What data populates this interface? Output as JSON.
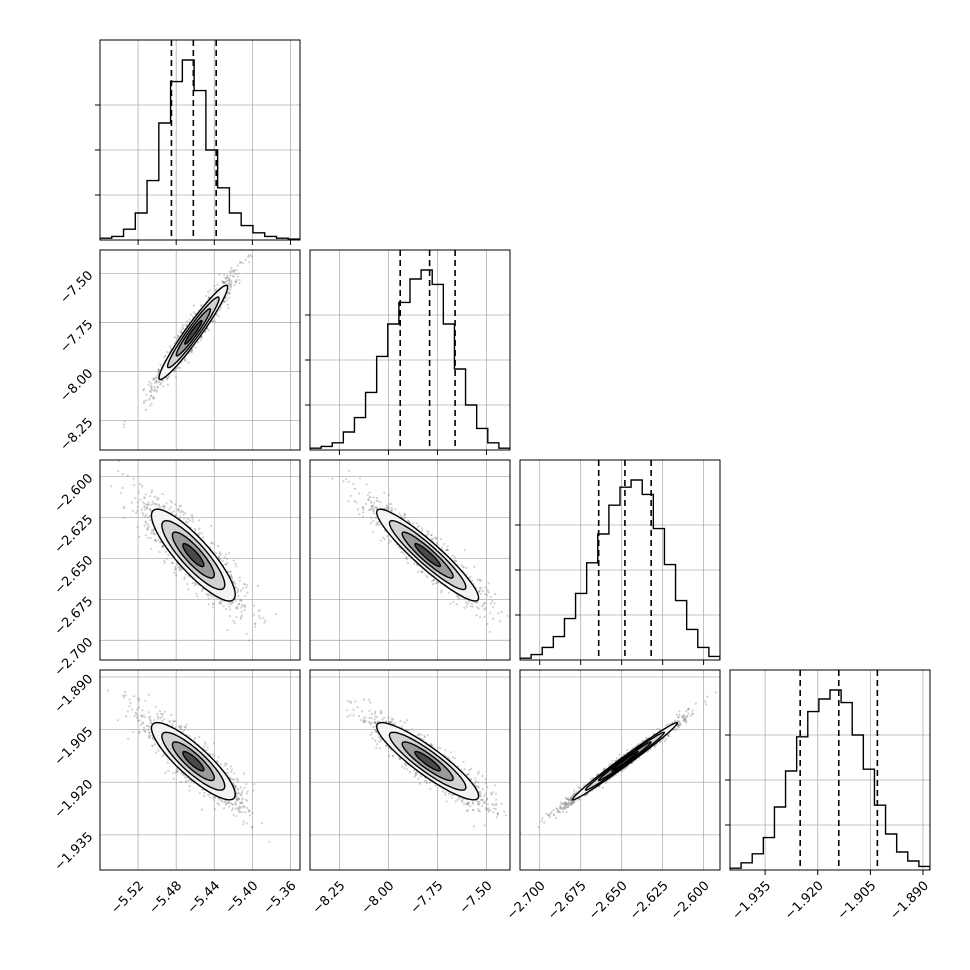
{
  "chart_data": {
    "type": "corner",
    "grid": true,
    "quantile_line_style": "dashed",
    "parameters": [
      {
        "range": [
          -5.56,
          -5.35
        ],
        "ticks": [
          -5.52,
          -5.48,
          -5.44,
          -5.4,
          -5.36
        ],
        "tick_labels": [
          "−5.52",
          "−5.48",
          "−5.44",
          "−5.40",
          "−5.36"
        ],
        "quantiles": [
          -5.485,
          -5.462,
          -5.438
        ],
        "hist_counts": [
          0.01,
          0.02,
          0.06,
          0.15,
          0.33,
          0.65,
          0.88,
          1.0,
          0.83,
          0.5,
          0.29,
          0.15,
          0.08,
          0.04,
          0.02,
          0.01,
          0.005
        ]
      },
      {
        "range": [
          -8.4,
          -7.38
        ],
        "ticks": [
          -8.25,
          -8.0,
          -7.75,
          -7.5
        ],
        "tick_labels": [
          "−8.25",
          "−8.00",
          "−7.75",
          "−7.50"
        ],
        "quantiles": [
          -7.94,
          -7.79,
          -7.66
        ],
        "hist_counts": [
          0.01,
          0.02,
          0.04,
          0.1,
          0.18,
          0.32,
          0.52,
          0.7,
          0.82,
          0.95,
          1.0,
          0.92,
          0.7,
          0.45,
          0.25,
          0.12,
          0.04,
          0.01
        ]
      },
      {
        "range": [
          -2.712,
          -2.59
        ],
        "ticks": [
          -2.7,
          -2.675,
          -2.65,
          -2.625,
          -2.6
        ],
        "tick_labels": [
          "−2.700",
          "−2.675",
          "−2.650",
          "−2.625",
          "−2.600"
        ],
        "quantiles": [
          -2.664,
          -2.648,
          -2.632
        ],
        "hist_counts": [
          0.01,
          0.03,
          0.07,
          0.13,
          0.23,
          0.37,
          0.54,
          0.7,
          0.86,
          0.96,
          1.0,
          0.92,
          0.73,
          0.53,
          0.33,
          0.17,
          0.07,
          0.02
        ]
      },
      {
        "range": [
          -1.945,
          -1.888
        ],
        "ticks": [
          -1.935,
          -1.92,
          -1.905,
          -1.89
        ],
        "tick_labels": [
          "−1.935",
          "−1.920",
          "−1.905",
          "−1.890"
        ],
        "quantiles": [
          -1.925,
          -1.914,
          -1.903
        ],
        "hist_counts": [
          0.01,
          0.04,
          0.09,
          0.18,
          0.35,
          0.55,
          0.74,
          0.88,
          0.95,
          1.0,
          0.93,
          0.75,
          0.56,
          0.36,
          0.2,
          0.1,
          0.05,
          0.02
        ]
      }
    ],
    "pairs": [
      {
        "x": 0,
        "y": 1,
        "mean": [
          -5.462,
          -7.8
        ],
        "sd": [
          0.018,
          0.12
        ],
        "corr": 0.96
      },
      {
        "x": 0,
        "y": 2,
        "mean": [
          -5.462,
          -2.648
        ],
        "sd": [
          0.022,
          0.014
        ],
        "corr": -0.86
      },
      {
        "x": 1,
        "y": 2,
        "mean": [
          -7.8,
          -2.648
        ],
        "sd": [
          0.13,
          0.014
        ],
        "corr": -0.93
      },
      {
        "x": 0,
        "y": 3,
        "mean": [
          -5.462,
          -1.914
        ],
        "sd": [
          0.022,
          0.0055
        ],
        "corr": -0.86
      },
      {
        "x": 1,
        "y": 3,
        "mean": [
          -7.8,
          -1.914
        ],
        "sd": [
          0.13,
          0.0055
        ],
        "corr": -0.9
      },
      {
        "x": 2,
        "y": 3,
        "mean": [
          -2.648,
          -1.914
        ],
        "sd": [
          0.016,
          0.0055
        ],
        "corr": 0.99
      }
    ]
  }
}
